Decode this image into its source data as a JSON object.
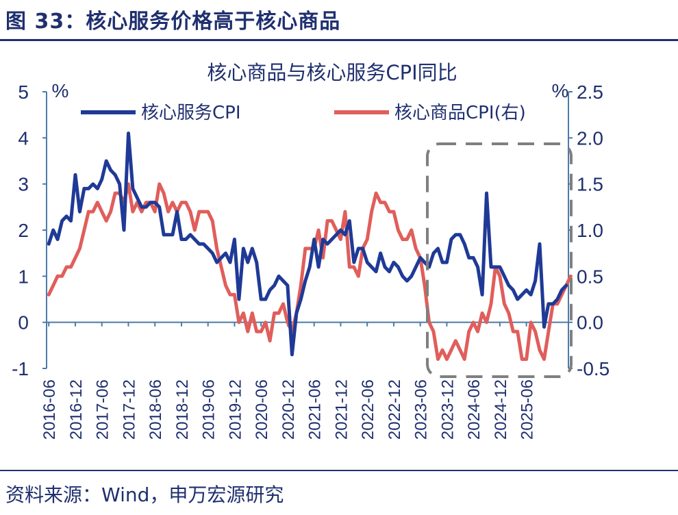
{
  "header": {
    "title": "图 33：核心服务价格高于核心商品"
  },
  "footer": {
    "source": "资料来源：Wind，申万宏源研究"
  },
  "chart_data": {
    "type": "line",
    "title": "核心商品与核心服务CPI同比",
    "y_left": {
      "label": "%",
      "min": -1,
      "max": 5,
      "ticks": [
        "5",
        "4",
        "3",
        "2",
        "1",
        "0",
        "-1"
      ]
    },
    "y_right": {
      "label": "%",
      "min": -0.5,
      "max": 2.5,
      "ticks": [
        "2.5",
        "2.0",
        "1.5",
        "1.0",
        "0.5",
        "0.0",
        "-0.5"
      ]
    },
    "x_ticks": [
      "2016-06",
      "2016-12",
      "2017-06",
      "2017-12",
      "2018-06",
      "2018-12",
      "2019-06",
      "2019-12",
      "2020-06",
      "2020-12",
      "2021-06",
      "2021-12",
      "2022-06",
      "2022-12",
      "2023-06",
      "2023-12",
      "2024-06",
      "2024-12",
      "2025-06"
    ],
    "x_start": "2016-06",
    "legend": "top",
    "series": [
      {
        "name": "核心服务CPI",
        "axis": "left",
        "color": "#1f3a96",
        "values": [
          1.7,
          2.0,
          1.8,
          2.2,
          2.3,
          2.2,
          3.2,
          2.4,
          2.9,
          2.9,
          3.0,
          2.9,
          3.1,
          3.5,
          3.3,
          3.2,
          3.0,
          2.0,
          4.1,
          2.9,
          2.7,
          2.5,
          2.5,
          2.6,
          2.6,
          2.5,
          1.9,
          1.9,
          1.9,
          2.4,
          1.8,
          1.8,
          1.9,
          1.8,
          1.7,
          1.7,
          1.6,
          1.5,
          1.3,
          1.4,
          1.5,
          1.3,
          1.8,
          0.5,
          1.6,
          1.3,
          1.6,
          1.3,
          0.5,
          0.5,
          0.7,
          0.8,
          1.0,
          0.9,
          0.8,
          -0.7,
          0.2,
          0.5,
          0.9,
          1.2,
          1.8,
          1.2,
          1.8,
          1.7,
          1.8,
          1.9,
          2.0,
          1.9,
          2.2,
          1.3,
          1.6,
          1.6,
          1.3,
          1.2,
          1.1,
          1.5,
          1.2,
          1.1,
          1.3,
          1.2,
          1.0,
          0.9,
          1.0,
          1.2,
          1.4,
          1.3,
          1.2,
          1.5,
          1.6,
          1.3,
          1.3,
          1.8,
          1.9,
          1.9,
          1.7,
          1.4,
          1.4,
          1.2,
          0.6,
          2.8,
          1.2,
          1.2,
          1.2,
          1.0,
          0.8,
          0.7,
          0.5,
          0.6,
          0.7,
          0.6,
          0.9,
          1.7,
          -0.1,
          0.4,
          0.4,
          0.5,
          0.7,
          0.8
        ]
      },
      {
        "name": "核心商品CPI(右)",
        "axis": "right",
        "color": "#e05e5b",
        "values": [
          0.3,
          0.4,
          0.5,
          0.5,
          0.6,
          0.6,
          0.7,
          0.8,
          1.0,
          1.2,
          1.2,
          1.3,
          1.2,
          1.1,
          1.2,
          1.4,
          1.4,
          1.3,
          1.5,
          1.2,
          1.3,
          1.2,
          1.3,
          1.3,
          1.2,
          1.5,
          1.4,
          1.2,
          1.3,
          1.2,
          1.3,
          1.3,
          1.2,
          1.0,
          1.2,
          1.2,
          1.2,
          1.1,
          0.8,
          0.6,
          0.4,
          0.3,
          0.3,
          0.0,
          0.1,
          -0.1,
          0.1,
          -0.1,
          -0.1,
          0.0,
          -0.2,
          0.1,
          0.1,
          0.2,
          0.0,
          -0.1,
          0.1,
          0.4,
          0.8,
          0.8,
          0.8,
          1.0,
          0.7,
          1.1,
          1.1,
          1.0,
          0.9,
          1.2,
          0.6,
          0.6,
          0.5,
          0.8,
          0.9,
          1.2,
          1.4,
          1.3,
          1.3,
          1.2,
          1.2,
          1.0,
          0.9,
          0.9,
          1.0,
          0.8,
          0.7,
          0.4,
          0.0,
          -0.1,
          -0.4,
          -0.3,
          -0.4,
          -0.3,
          -0.2,
          -0.3,
          -0.4,
          -0.1,
          0.0,
          -0.1,
          0.1,
          0.0,
          0.2,
          0.6,
          0.5,
          0.2,
          0.1,
          -0.1,
          -0.1,
          -0.4,
          -0.4,
          0.0,
          -0.1,
          -0.3,
          -0.4,
          -0.1,
          0.2,
          0.2,
          0.3,
          0.4,
          0.5
        ]
      }
    ]
  }
}
